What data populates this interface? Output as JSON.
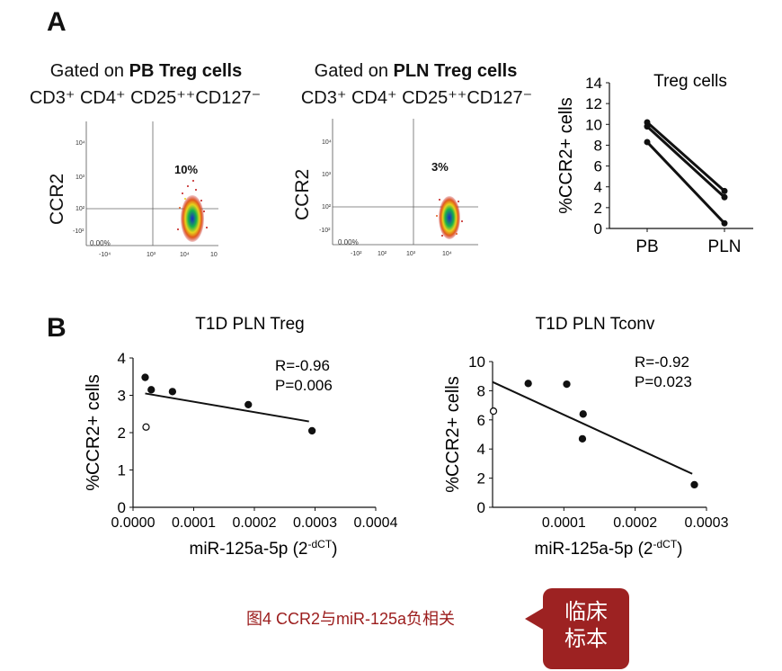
{
  "panels": {
    "A_label": "A",
    "B_label": "B"
  },
  "flow_plots": [
    {
      "gate_prefix": "Gated on ",
      "gate_bold": "PB Treg cells",
      "markers": "CD3⁺ CD4⁺ CD25⁺⁺CD127⁻",
      "ylabel": "CCR2",
      "upper_right_pct": "10%",
      "lower_left_pct": "0.00%",
      "x_ticks": [
        "-10⁴",
        "10³",
        "10⁴",
        "10"
      ],
      "y_ticks": [
        "10⁴",
        "10³",
        "10²",
        "-10²"
      ]
    },
    {
      "gate_prefix": "Gated on ",
      "gate_bold": "PLN Treg cells",
      "markers": "CD3⁺ CD4⁺ CD25⁺⁺CD127⁻",
      "ylabel": "CCR2",
      "upper_right_pct": "3%",
      "lower_left_pct": "0.00%",
      "x_ticks": [
        "-10²",
        "10²",
        "10³",
        "10⁴"
      ],
      "y_ticks": [
        "10⁴",
        "10³",
        "10²",
        "-10²"
      ]
    }
  ],
  "chart_data": [
    {
      "type": "line",
      "title": "Treg cells",
      "ylabel": "%CCR2+ cells",
      "xlabel": "",
      "categories": [
        "PB",
        "PLN"
      ],
      "ylim": [
        0,
        14
      ],
      "yticks": [
        "0",
        "2",
        "4",
        "6",
        "8",
        "10",
        "12",
        "14"
      ],
      "series": [
        {
          "values": [
            10.2,
            3.6
          ]
        },
        {
          "values": [
            9.8,
            3.0
          ]
        },
        {
          "values": [
            8.3,
            0.5
          ]
        }
      ]
    },
    {
      "type": "scatter",
      "title": "T1D PLN Treg",
      "ylabel": "%CCR2+ cells",
      "xlabel": "miR-125a-5p (2",
      "xlabel_sup": "-dCT",
      "xlabel_close": ")",
      "stats": [
        "R=-0.96",
        "P=0.006"
      ],
      "xlim": [
        0,
        0.0004
      ],
      "ylim": [
        0,
        4
      ],
      "xticks": [
        "0.0000",
        "0.0001",
        "0.0002",
        "0.0003",
        "0.0004"
      ],
      "yticks": [
        "0",
        "1",
        "2",
        "3",
        "4"
      ],
      "points": [
        {
          "x": 2e-05,
          "y": 3.48,
          "open": false
        },
        {
          "x": 3e-05,
          "y": 3.15,
          "open": false
        },
        {
          "x": 6.5e-05,
          "y": 3.1,
          "open": false
        },
        {
          "x": 0.00019,
          "y": 2.75,
          "open": false
        },
        {
          "x": 0.000295,
          "y": 2.05,
          "open": false
        },
        {
          "x": 2e-05,
          "y": 2.15,
          "open": true
        }
      ],
      "fit": [
        {
          "x": 2e-05,
          "y": 3.05
        },
        {
          "x": 0.00029,
          "y": 2.3
        }
      ]
    },
    {
      "type": "scatter",
      "title": "T1D PLN Tconv",
      "ylabel": "%CCR2+ cells",
      "xlabel": "miR-125a-5p (2",
      "xlabel_sup": "-dCT",
      "xlabel_close": ")",
      "stats": [
        "R=-0.92",
        "P=0.023"
      ],
      "xlim": [
        0,
        0.0003
      ],
      "ylim": [
        0,
        10
      ],
      "xticks": [
        "0.0001",
        "0.0002",
        "0.0003"
      ],
      "xtick_values": [
        0.0001,
        0.0002,
        0.0003
      ],
      "yticks": [
        "0",
        "2",
        "4",
        "6",
        "8",
        "10"
      ],
      "points": [
        {
          "x": 5e-05,
          "y": 8.5,
          "open": false
        },
        {
          "x": 0.000104,
          "y": 8.45,
          "open": false
        },
        {
          "x": 0.000127,
          "y": 6.4,
          "open": false
        },
        {
          "x": 0.000126,
          "y": 4.7,
          "open": false
        },
        {
          "x": 0.000283,
          "y": 1.55,
          "open": false
        },
        {
          "x": 0.0,
          "y": 6.6,
          "open": true
        }
      ],
      "fit": [
        {
          "x": 0.0,
          "y": 8.6
        },
        {
          "x": 0.00028,
          "y": 2.3
        }
      ]
    }
  ],
  "caption": "图4 CCR2与miR-125a负相关",
  "badge_line1": "临床",
  "badge_line2": "标本",
  "colors": {
    "caption": "#9b1c1c",
    "badge": "#9d2222"
  }
}
